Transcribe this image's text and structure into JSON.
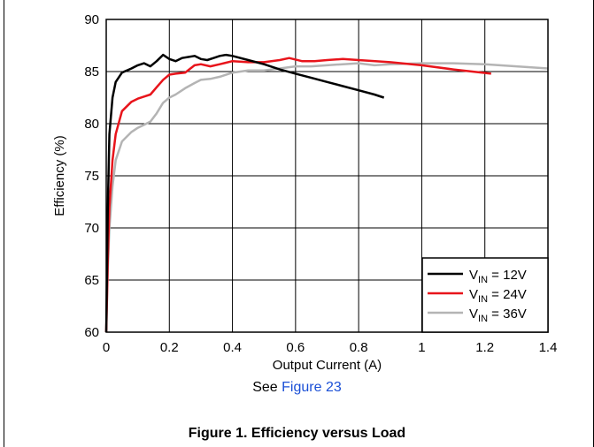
{
  "chart_data": {
    "type": "line",
    "xlabel": "Output Current (A)",
    "ylabel": "Efficiency (%)",
    "xlim": [
      0,
      1.4
    ],
    "ylim": [
      60,
      90
    ],
    "x_ticks": [
      "0",
      "0.2",
      "0.4",
      "0.6",
      "0.8",
      "1",
      "1.2",
      "1.4"
    ],
    "y_ticks": [
      "60",
      "65",
      "70",
      "75",
      "80",
      "85",
      "90"
    ],
    "grid": true,
    "legend_position": "bottom-right",
    "series": [
      {
        "name": "V",
        "sub": "IN",
        "suffix": " = 12V",
        "color": "#000000",
        "x": [
          0,
          0.005,
          0.01,
          0.02,
          0.03,
          0.05,
          0.08,
          0.1,
          0.12,
          0.14,
          0.16,
          0.18,
          0.2,
          0.22,
          0.24,
          0.26,
          0.28,
          0.3,
          0.32,
          0.34,
          0.36,
          0.38,
          0.4,
          0.45,
          0.5,
          0.55,
          0.6,
          0.65,
          0.7,
          0.75,
          0.8,
          0.85,
          0.88
        ],
        "y": [
          60,
          72,
          79,
          82.5,
          84,
          84.9,
          85.3,
          85.6,
          85.8,
          85.5,
          86.0,
          86.6,
          86.2,
          86.0,
          86.3,
          86.4,
          86.5,
          86.2,
          86.1,
          86.3,
          86.5,
          86.6,
          86.5,
          86.1,
          85.7,
          85.2,
          84.8,
          84.4,
          84.0,
          83.6,
          83.2,
          82.8,
          82.5
        ]
      },
      {
        "name": "V",
        "sub": "IN",
        "suffix": " = 24V",
        "color": "#e8141b",
        "x": [
          0,
          0.005,
          0.01,
          0.02,
          0.03,
          0.05,
          0.08,
          0.1,
          0.12,
          0.14,
          0.16,
          0.18,
          0.2,
          0.22,
          0.25,
          0.28,
          0.3,
          0.33,
          0.36,
          0.4,
          0.45,
          0.5,
          0.55,
          0.58,
          0.62,
          0.66,
          0.7,
          0.75,
          0.8,
          0.9,
          1.0,
          1.1,
          1.22
        ],
        "y": [
          60,
          67,
          72,
          76.5,
          79,
          81.2,
          82.1,
          82.4,
          82.6,
          82.8,
          83.5,
          84.2,
          84.7,
          84.8,
          84.9,
          85.6,
          85.7,
          85.5,
          85.7,
          86.0,
          85.9,
          85.9,
          86.1,
          86.3,
          86.0,
          86.0,
          86.1,
          86.2,
          86.1,
          85.9,
          85.6,
          85.2,
          84.8
        ]
      },
      {
        "name": "V",
        "sub": "IN",
        "suffix": " = 36V",
        "color": "#b4b4b4",
        "x": [
          0,
          0.005,
          0.01,
          0.02,
          0.03,
          0.05,
          0.08,
          0.1,
          0.12,
          0.14,
          0.16,
          0.18,
          0.2,
          0.22,
          0.25,
          0.28,
          0.3,
          0.33,
          0.36,
          0.4,
          0.45,
          0.5,
          0.55,
          0.6,
          0.65,
          0.7,
          0.75,
          0.8,
          0.85,
          0.9,
          1.0,
          1.1,
          1.2,
          1.3,
          1.4
        ],
        "y": [
          60,
          66,
          70,
          74,
          76.5,
          78.3,
          79.2,
          79.6,
          79.9,
          80.2,
          81.0,
          82.0,
          82.5,
          82.8,
          83.4,
          83.9,
          84.2,
          84.3,
          84.5,
          84.9,
          85.1,
          85.1,
          85.3,
          85.5,
          85.5,
          85.6,
          85.7,
          85.8,
          85.6,
          85.7,
          85.8,
          85.8,
          85.7,
          85.5,
          85.3
        ]
      }
    ]
  },
  "see_prefix": "See ",
  "see_link": "Figure 23",
  "caption": "Figure 1. Efficiency versus Load"
}
